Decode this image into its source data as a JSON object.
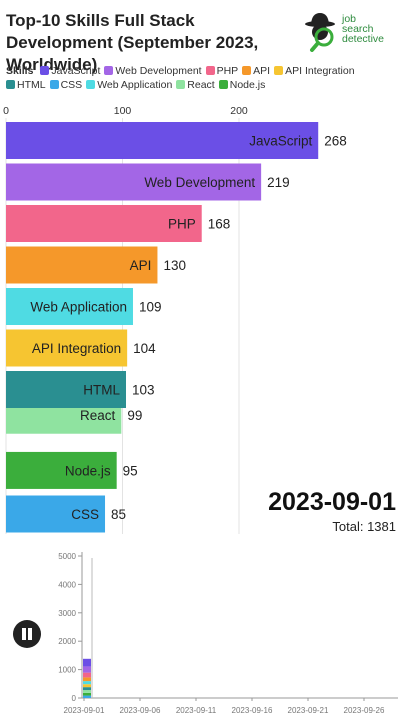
{
  "title": "Top-10 Skills Full Stack Development (September 2023, Worldwide)",
  "logo": {
    "lines": [
      "job",
      "search",
      "detective"
    ]
  },
  "legend": {
    "title": "Skills",
    "items": [
      {
        "label": "JavaScript",
        "color": "#6b4fe6"
      },
      {
        "label": "Web Development",
        "color": "#a366e6"
      },
      {
        "label": "PHP",
        "color": "#f2668b"
      },
      {
        "label": "API",
        "color": "#f5982a"
      },
      {
        "label": "API Integration",
        "color": "#f6c531"
      },
      {
        "label": "HTML",
        "color": "#2a8f91"
      },
      {
        "label": "CSS",
        "color": "#3aa8e8"
      },
      {
        "label": "Web Application",
        "color": "#4fdbe3"
      },
      {
        "label": "React",
        "color": "#8fe3a0"
      },
      {
        "label": "Node.js",
        "color": "#3bae3c"
      }
    ]
  },
  "chart_data": [
    {
      "type": "bar",
      "orientation": "horizontal",
      "date": "2023-09-01",
      "total_label": "Total: 1381",
      "xlim": [
        0,
        290
      ],
      "x_ticks": [
        0,
        100,
        200
      ],
      "bars": [
        {
          "label": "JavaScript",
          "value": 268,
          "color": "#6b4fe6"
        },
        {
          "label": "Web Development",
          "value": 219,
          "color": "#a366e6"
        },
        {
          "label": "PHP",
          "value": 168,
          "color": "#f2668b"
        },
        {
          "label": "API",
          "value": 130,
          "color": "#f5982a"
        },
        {
          "label": "Web Application",
          "value": 109,
          "color": "#4fdbe3"
        },
        {
          "label": "API Integration",
          "value": 104,
          "color": "#f6c531"
        },
        {
          "label": "React",
          "value": 99,
          "color": "#8fe3a0"
        },
        {
          "label": "HTML",
          "value": 103,
          "color": "#2a8f91"
        },
        {
          "label": "Node.js",
          "value": 95,
          "color": "#3bae3c"
        },
        {
          "label": "CSS",
          "value": 85,
          "color": "#3aa8e8"
        }
      ]
    },
    {
      "type": "area",
      "ylim": [
        0,
        5000
      ],
      "y_ticks": [
        "0",
        "1000",
        "2000",
        "3000",
        "4000",
        "5000"
      ],
      "x_ticks": [
        "2023-09-01",
        "2023-09-06",
        "2023-09-11",
        "2023-09-16",
        "2023-09-21",
        "2023-09-26"
      ],
      "current": "2023-09-01",
      "stack_values": [
        85,
        95,
        99,
        103,
        104,
        109,
        130,
        168,
        219,
        268
      ],
      "stack_colors": [
        "#3aa8e8",
        "#3bae3c",
        "#8fe3a0",
        "#2a8f91",
        "#f6c531",
        "#4fdbe3",
        "#f5982a",
        "#f2668b",
        "#a366e6",
        "#6b4fe6"
      ]
    }
  ]
}
